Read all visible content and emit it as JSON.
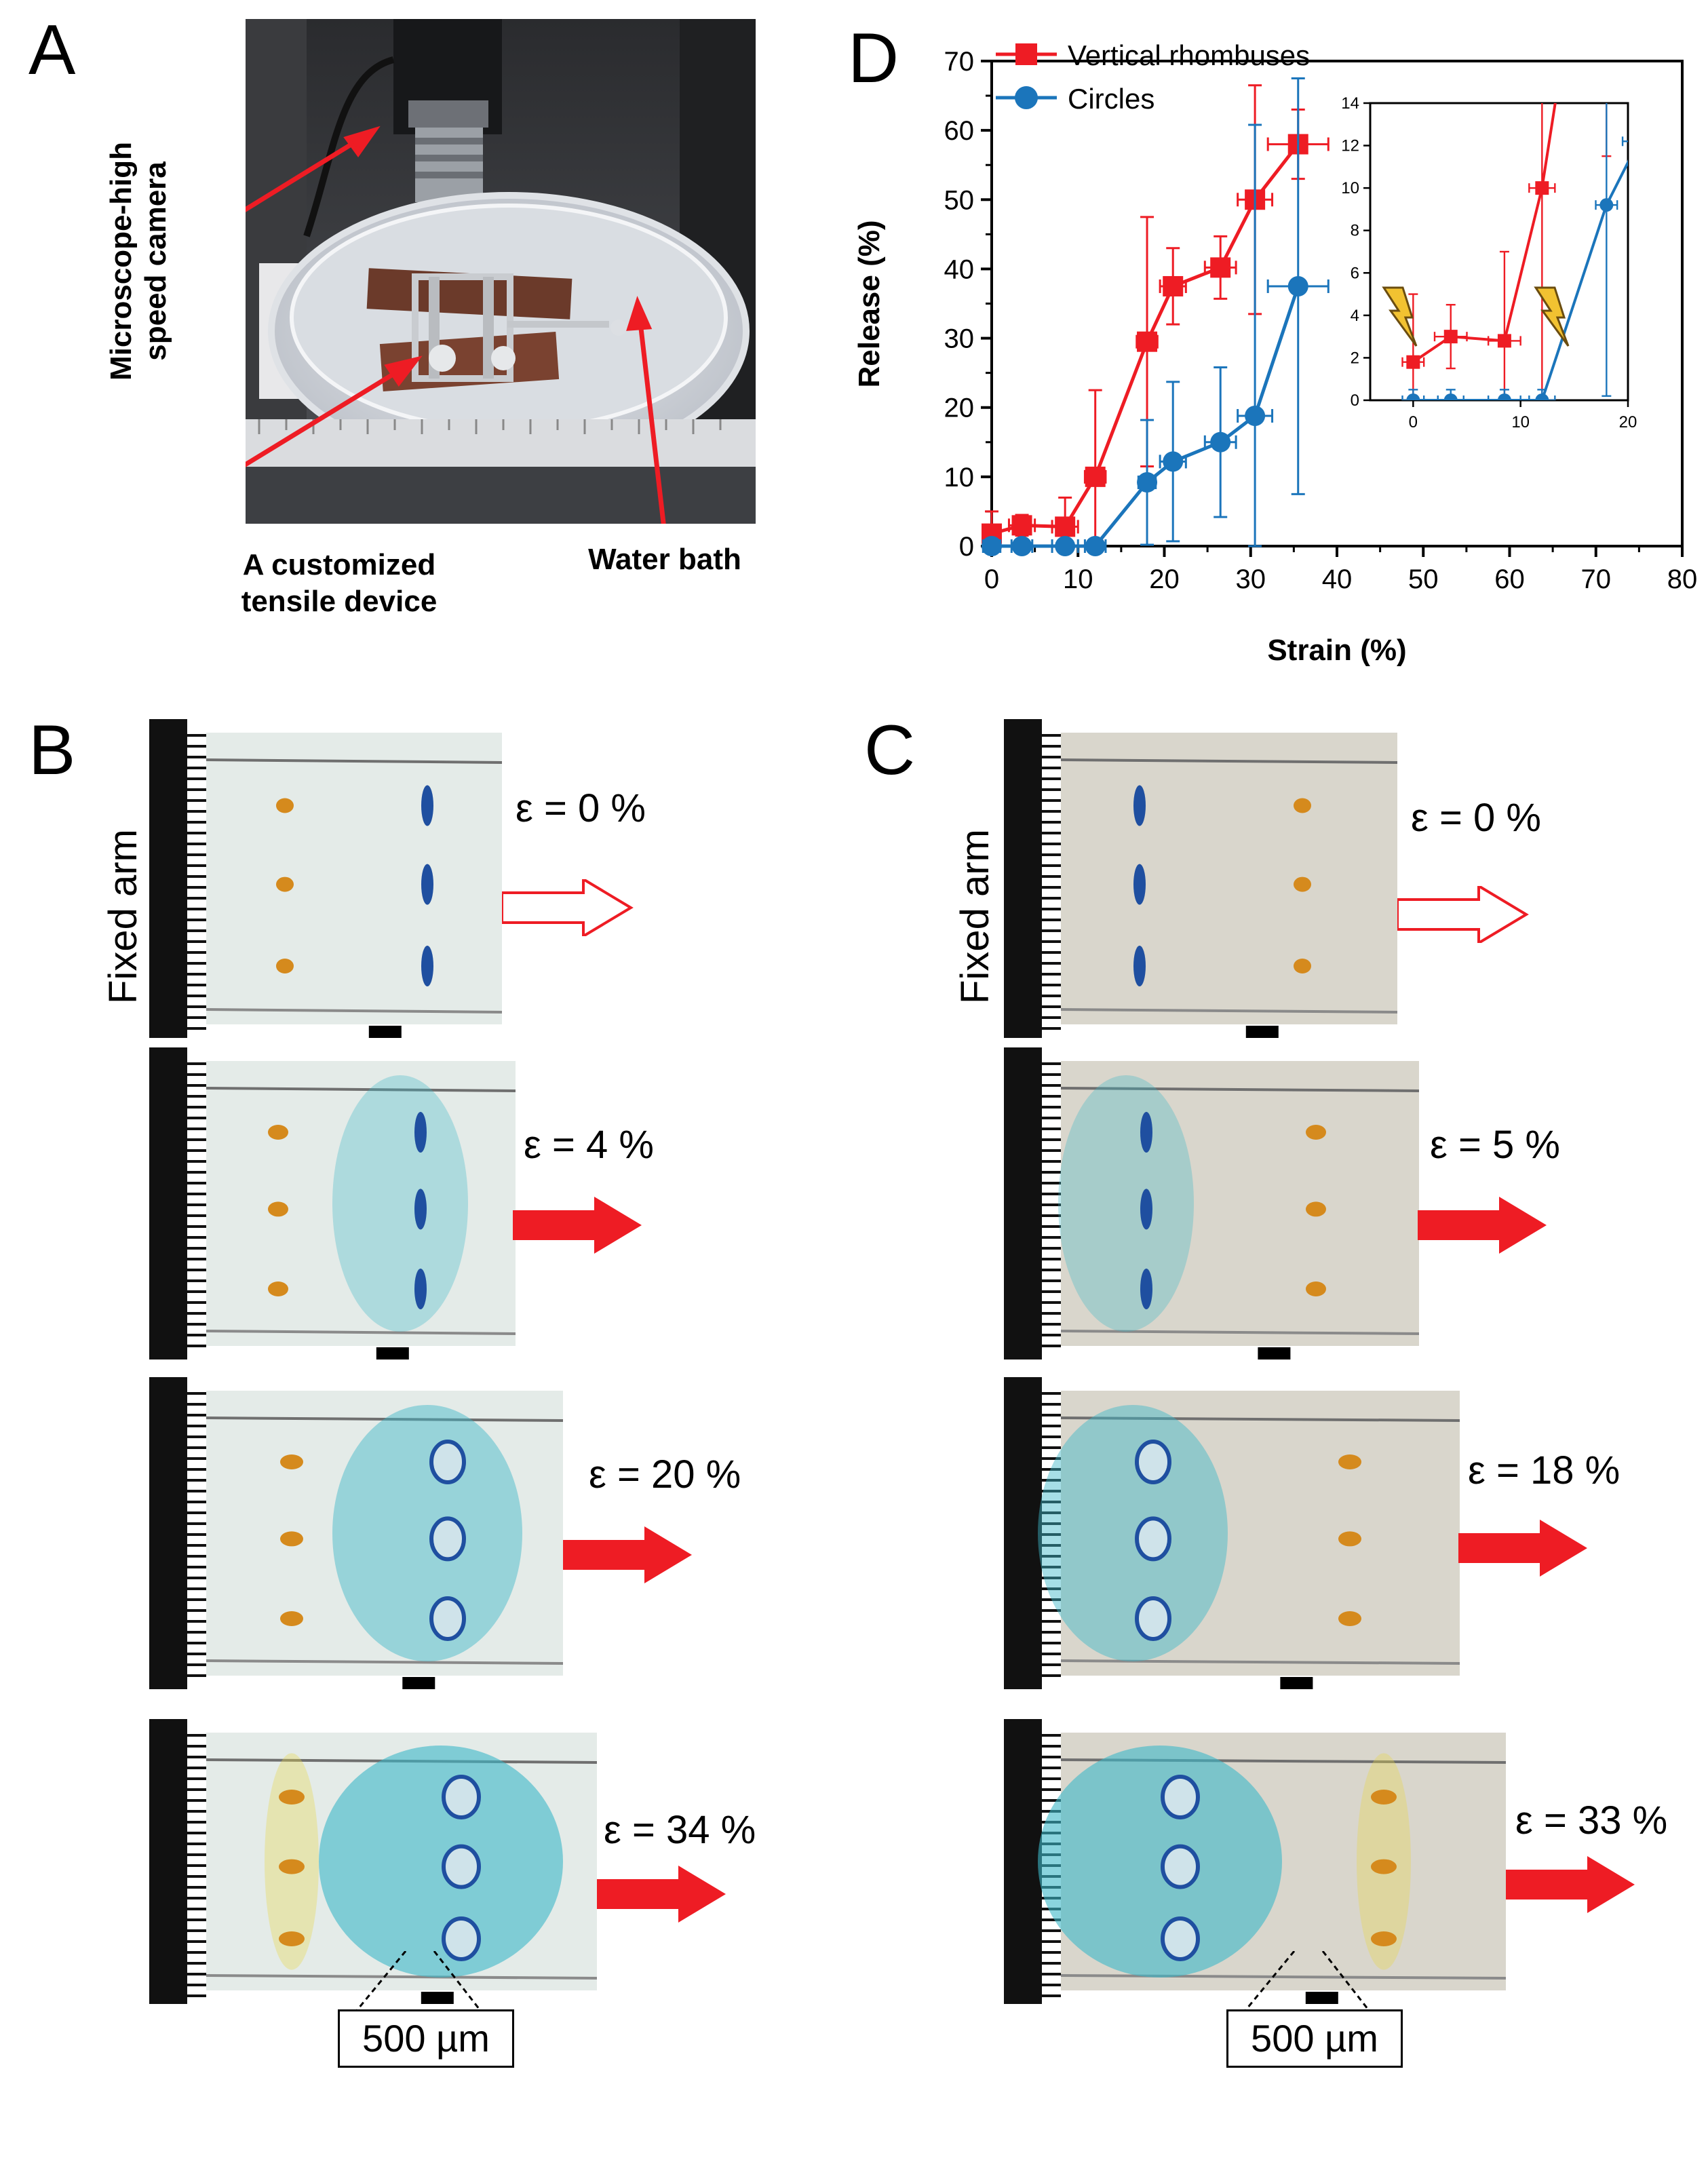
{
  "panels": {
    "a": {
      "letter": "A",
      "labels": {
        "camera": "Microscope-high speed camera",
        "device_line1": "A customized",
        "device_line2": "tensile device",
        "water": "Water bath"
      }
    },
    "b": {
      "letter": "B",
      "fixed_arm": "Fixed arm",
      "strains": [
        "ε = 0 %",
        "ε = 4 %",
        "ε = 20 %",
        "ε = 34 %"
      ],
      "scale_bar": "500 µm"
    },
    "c": {
      "letter": "C",
      "fixed_arm": "Fixed arm",
      "strains": [
        "ε = 0 %",
        "ε = 5 %",
        "ε = 18 %",
        "ε = 33 %"
      ],
      "scale_bar": "500 µm"
    },
    "d": {
      "letter": "D"
    }
  },
  "colors": {
    "red": "#ee1c24",
    "blue": "#1b75bb",
    "dye_blue": "#1f4fa0",
    "dye_orange": "#d58a1d",
    "gel": "#e4ebe8"
  },
  "chart_data": {
    "type": "line",
    "xlabel": "Strain (%)",
    "ylabel": "Release (%)",
    "xlim": [
      0,
      80
    ],
    "ylim": [
      0,
      70
    ],
    "xticks": [
      0,
      10,
      20,
      30,
      40,
      50,
      60,
      70,
      80
    ],
    "yticks": [
      0,
      10,
      20,
      30,
      40,
      50,
      60,
      70
    ],
    "legend_position": "top-left",
    "series": [
      {
        "name": "Vertical rhombuses",
        "color": "#ee1c24",
        "marker": "square",
        "x": [
          0,
          3.5,
          8.5,
          12,
          18,
          21,
          26.5,
          30.5,
          35.5
        ],
        "y": [
          1.8,
          3.0,
          2.8,
          10,
          29.5,
          37.5,
          40.2,
          50,
          58
        ],
        "y_err": [
          3.2,
          1.5,
          4.2,
          12.5,
          18,
          5.5,
          4.5,
          16.5,
          5
        ],
        "x_err": [
          1.0,
          1.5,
          1.5,
          1.2,
          1.2,
          1.5,
          1.8,
          2.0,
          3.5
        ]
      },
      {
        "name": "Circles",
        "color": "#1b75bb",
        "marker": "circle",
        "x": [
          0,
          3.5,
          8.5,
          12,
          18,
          21,
          26.5,
          30.5,
          35.5
        ],
        "y": [
          0,
          0,
          0,
          0,
          9.2,
          12.2,
          15,
          18.8,
          37.5
        ],
        "y_err": [
          0.5,
          0.5,
          0.5,
          0.5,
          9,
          11.5,
          10.8,
          42,
          30
        ],
        "x_err": [
          1.0,
          1.2,
          1.5,
          1.2,
          1.0,
          1.5,
          1.8,
          2.0,
          3.5
        ]
      }
    ],
    "inset": {
      "xlim": [
        -4,
        20
      ],
      "ylim": [
        0,
        14
      ],
      "xticks": [
        0,
        10,
        20
      ],
      "yticks": [
        0,
        2,
        4,
        6,
        8,
        10,
        12,
        14
      ]
    }
  }
}
